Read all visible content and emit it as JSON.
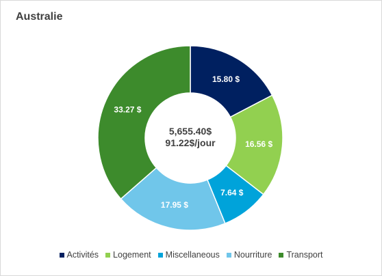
{
  "chart_data": {
    "type": "pie",
    "title": "Australie",
    "donut": true,
    "center_total": "5,655.40$",
    "center_per_day": "91.22$/jour",
    "legend_position": "bottom",
    "slices": [
      {
        "name": "Activités",
        "value": 15.8,
        "label": "15.80  $",
        "color": "#002060"
      },
      {
        "name": "Logement",
        "value": 16.56,
        "label": "16.56  $",
        "color": "#92d050"
      },
      {
        "name": "Miscellaneous",
        "value": 7.64,
        "label": "7.64  $",
        "color": "#00a3da"
      },
      {
        "name": "Nourriture",
        "value": 17.95,
        "label": "17.95  $",
        "color": "#70c6ea"
      },
      {
        "name": "Transport",
        "value": 33.27,
        "label": "33.27  $",
        "color": "#3d8b2c"
      }
    ]
  }
}
